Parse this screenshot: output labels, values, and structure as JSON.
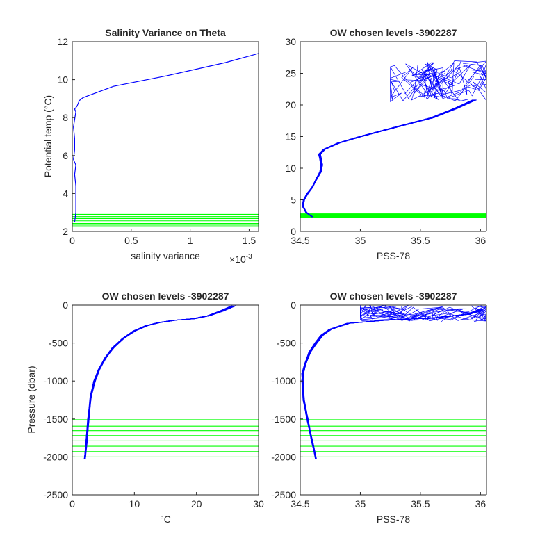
{
  "chart_data": [
    {
      "type": "line",
      "title": "Salinity Variance on Theta",
      "xlabel": "salinity variance",
      "x_exponent": "×10",
      "x_exponent_power": "-3",
      "ylabel": "Potential temp (°C)",
      "xlim": [
        0,
        1.58
      ],
      "ylim": [
        2,
        12
      ],
      "x_ticks": [
        0,
        0.5,
        1,
        1.5
      ],
      "x_tick_labels": [
        "0",
        "0.5",
        "1",
        "1.5"
      ],
      "y_ticks": [
        2,
        4,
        6,
        8,
        10,
        12
      ],
      "y_tick_labels": [
        "2",
        "4",
        "6",
        "8",
        "10",
        "12"
      ],
      "grid": false,
      "series": [
        {
          "color": "#0000ff",
          "x": [
            0.02,
            0.03,
            0.03,
            0.03,
            0.02,
            0.03,
            0.01,
            0.02,
            0.02,
            0.01,
            0.02,
            0.03,
            0.02,
            0.04,
            0.05,
            0.06,
            0.09,
            0.35,
            0.8,
            1.3,
            1.58
          ],
          "y": [
            2.5,
            3.0,
            3.6,
            4.4,
            5.0,
            5.5,
            5.8,
            6.3,
            6.9,
            7.5,
            7.9,
            8.3,
            8.45,
            8.6,
            8.75,
            8.9,
            9.05,
            9.65,
            10.2,
            10.9,
            11.38
          ]
        }
      ],
      "reference_levels": {
        "color": "#00ff00",
        "y": [
          2.9,
          2.78,
          2.68,
          2.58,
          2.5,
          2.42,
          2.33,
          2.25
        ]
      }
    },
    {
      "type": "line",
      "title": "OW chosen levels -3902287",
      "xlabel": "PSS-78",
      "ylabel": "",
      "xlim": [
        34.5,
        36.05
      ],
      "ylim": [
        0,
        30
      ],
      "x_ticks": [
        34.5,
        35,
        35.5,
        36
      ],
      "x_tick_labels": [
        "34.5",
        "35",
        "35.5",
        "36"
      ],
      "y_ticks": [
        0,
        5,
        10,
        15,
        20,
        25,
        30
      ],
      "y_tick_labels": [
        "0",
        "5",
        "10",
        "15",
        "20",
        "25",
        "30"
      ],
      "grid": false,
      "profile_color": "#0000ff",
      "profile_count": 30,
      "profile_mean": {
        "x": [
          34.6,
          34.55,
          34.52,
          34.53,
          34.56,
          34.6,
          34.64,
          34.67,
          34.68,
          34.67,
          34.66,
          34.7,
          34.82,
          35.0,
          35.3,
          35.6,
          35.8,
          35.95
        ],
        "y": [
          2.3,
          3.0,
          4.0,
          5.0,
          6.0,
          7.0,
          8.5,
          9.5,
          10.5,
          11.5,
          12.2,
          13.0,
          14.0,
          15.0,
          16.5,
          18.0,
          19.5,
          20.8
        ]
      },
      "surface_region": {
        "x_range": [
          35.25,
          36.05
        ],
        "y_range": [
          20.5,
          27
        ]
      },
      "reference_levels": {
        "color": "#00ff00",
        "y": [
          2.9,
          2.78,
          2.68,
          2.58,
          2.5,
          2.42,
          2.33,
          2.25
        ]
      }
    },
    {
      "type": "line",
      "title": "OW chosen levels -3902287",
      "xlabel": "°C",
      "ylabel": "Pressure (dbar)",
      "xlim": [
        0,
        30
      ],
      "ylim": [
        -2500,
        0
      ],
      "x_ticks": [
        0,
        10,
        20,
        30
      ],
      "x_tick_labels": [
        "0",
        "10",
        "20",
        "30"
      ],
      "y_ticks": [
        -2500,
        -2000,
        -1500,
        -1000,
        -500,
        0
      ],
      "y_tick_labels": [
        "-2500",
        "-2000",
        "-1500",
        "-1000",
        "-500",
        "0"
      ],
      "grid": false,
      "profile_color": "#0000ff",
      "profile_count": 30,
      "profile_mean": {
        "x": [
          2.0,
          2.3,
          2.6,
          3.0,
          3.6,
          4.3,
          5.3,
          6.6,
          8.2,
          10.0,
          12.0,
          14.0,
          16.5,
          19.5,
          22.0,
          24.0,
          26.0
        ],
        "y": [
          -2030,
          -1800,
          -1500,
          -1200,
          -1000,
          -850,
          -700,
          -560,
          -440,
          -340,
          -270,
          -230,
          -200,
          -180,
          -140,
          -80,
          -10
        ]
      },
      "reference_levels": {
        "color": "#00ff00",
        "y": [
          -1510,
          -1595,
          -1655,
          -1720,
          -1790,
          -1860,
          -1930,
          -2000
        ]
      }
    },
    {
      "type": "line",
      "title": "OW chosen levels -3902287",
      "xlabel": "PSS-78",
      "ylabel": "",
      "xlim": [
        34.5,
        36.05
      ],
      "ylim": [
        -2500,
        0
      ],
      "x_ticks": [
        34.5,
        35,
        35.5,
        36
      ],
      "x_tick_labels": [
        "34.5",
        "35",
        "35.5",
        "36"
      ],
      "y_ticks": [
        -2500,
        -2000,
        -1500,
        -1000,
        -500,
        0
      ],
      "y_tick_labels": [
        "-2500",
        "-2000",
        "-1500",
        "-1000",
        "-500",
        "0"
      ],
      "grid": false,
      "profile_color": "#0000ff",
      "profile_count": 30,
      "profile_mean": {
        "x": [
          34.63,
          34.6,
          34.56,
          34.53,
          34.52,
          34.52,
          34.54,
          34.58,
          34.63,
          34.68,
          34.75,
          34.9,
          35.2,
          35.6,
          35.9,
          36.0
        ],
        "y": [
          -2030,
          -1800,
          -1500,
          -1250,
          -1000,
          -900,
          -780,
          -620,
          -500,
          -400,
          -320,
          -240,
          -200,
          -170,
          -120,
          -60
        ]
      },
      "surface_region": {
        "x_range": [
          35.0,
          36.05
        ],
        "y_range": [
          -220,
          0
        ]
      },
      "reference_levels": {
        "color": "#00ff00",
        "y": [
          -1510,
          -1595,
          -1655,
          -1720,
          -1790,
          -1860,
          -1930,
          -2000
        ]
      }
    }
  ]
}
